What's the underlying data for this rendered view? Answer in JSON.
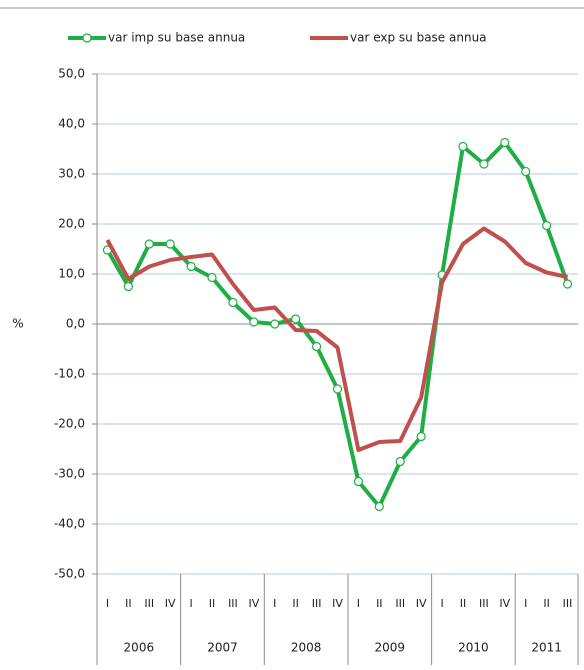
{
  "chart_data": {
    "type": "line",
    "y_label": "%",
    "groups": [
      {
        "label": "2006",
        "categories": [
          "I",
          "II",
          "III",
          "IV"
        ]
      },
      {
        "label": "2007",
        "categories": [
          "I",
          "II",
          "III",
          "IV"
        ]
      },
      {
        "label": "2008",
        "categories": [
          "I",
          "II",
          "III",
          "IV"
        ]
      },
      {
        "label": "2009",
        "categories": [
          "I",
          "II",
          "III",
          "IV"
        ]
      },
      {
        "label": "2010",
        "categories": [
          "I",
          "II",
          "III",
          "IV"
        ]
      },
      {
        "label": "2011",
        "categories": [
          "I",
          "II",
          "III"
        ]
      }
    ],
    "series": [
      {
        "name": "var imp su base annua",
        "color": "#1fae45",
        "marker": true,
        "values": [
          14.8,
          7.5,
          16.0,
          16.0,
          11.5,
          9.3,
          4.3,
          0.4,
          0.0,
          1.0,
          -4.5,
          -13.0,
          -31.5,
          -36.5,
          -27.5,
          -22.5,
          9.8,
          35.5,
          32.0,
          36.3,
          30.5,
          19.7,
          8.0
        ]
      },
      {
        "name": "var exp su base annua",
        "color": "#c0504d",
        "marker": false,
        "values": [
          16.8,
          9.0,
          11.5,
          12.8,
          13.4,
          13.9,
          8.0,
          2.8,
          3.3,
          -1.2,
          -1.4,
          -4.7,
          -25.2,
          -23.6,
          -23.4,
          -14.7,
          8.3,
          16.0,
          19.1,
          16.5,
          12.2,
          10.3,
          9.4
        ]
      }
    ],
    "ylim": [
      -50,
      50
    ],
    "yticks": [
      {
        "value": -50,
        "label": "-50,0"
      },
      {
        "value": -40,
        "label": "-40,0"
      },
      {
        "value": -30,
        "label": "-30,0"
      },
      {
        "value": -20,
        "label": "-20,0"
      },
      {
        "value": -10,
        "label": "-10,0"
      },
      {
        "value": 0,
        "label": "0,0"
      },
      {
        "value": 10,
        "label": "10,0"
      },
      {
        "value": 20,
        "label": "20,0"
      },
      {
        "value": 30,
        "label": "30,0"
      },
      {
        "value": 40,
        "label": "40,0"
      },
      {
        "value": 50,
        "label": "50,0"
      }
    ],
    "grid": true,
    "legend": "top"
  }
}
